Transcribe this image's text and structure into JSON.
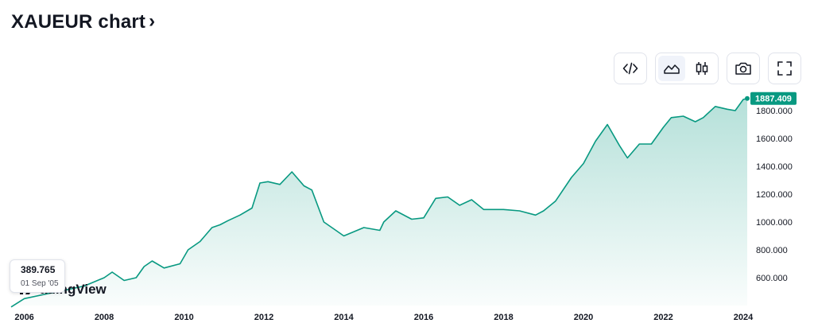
{
  "header": {
    "title": "XAUEUR chart",
    "chevron": "›"
  },
  "toolbar": [
    {
      "name": "embed-code-button",
      "icon": "code-icon"
    },
    {
      "name": "area-chart-style-button",
      "icon": "area-chart-icon",
      "active": true
    },
    {
      "name": "candlestick-style-button",
      "icon": "candlestick-icon"
    },
    {
      "name": "snapshot-button",
      "icon": "camera-icon"
    },
    {
      "name": "fullscreen-button",
      "icon": "fullscreen-icon"
    }
  ],
  "tooltip": {
    "value": "389.765",
    "date": "01 Sep '05"
  },
  "watermark": {
    "text": "TradingView",
    "visible_text": "adingView"
  },
  "colors": {
    "line": "#089981",
    "badge": "#089981",
    "fill_top": "#089981",
    "text": "#131722"
  },
  "chart_data": {
    "type": "area",
    "title": "XAUEUR chart",
    "xlabel": "",
    "ylabel": "",
    "xlim": [
      2005.67,
      2024.1
    ],
    "ylim": [
      400,
      1920
    ],
    "x_ticks": [
      "2006",
      "2008",
      "2010",
      "2012",
      "2014",
      "2016",
      "2018",
      "2020",
      "2022",
      "2024"
    ],
    "y_ticks": [
      "600.000",
      "800.000",
      "1000.000",
      "1200.000",
      "1400.000",
      "1600.000",
      "1800.000"
    ],
    "last_value": "1887.409",
    "grid": false,
    "series": [
      {
        "x": [
          2005.67,
          2006.0,
          2006.5,
          2007.0,
          2007.5,
          2008.0,
          2008.2,
          2008.5,
          2008.8,
          2009.0,
          2009.2,
          2009.5,
          2009.9,
          2010.1,
          2010.4,
          2010.7,
          2010.9,
          2011.1,
          2011.4,
          2011.7,
          2011.9,
          2012.1,
          2012.4,
          2012.7,
          2013.0,
          2013.2,
          2013.5,
          2013.8,
          2014.0,
          2014.5,
          2014.9,
          2015.0,
          2015.3,
          2015.7,
          2016.0,
          2016.3,
          2016.6,
          2016.9,
          2017.2,
          2017.5,
          2017.8,
          2018.0,
          2018.4,
          2018.8,
          2019.0,
          2019.3,
          2019.7,
          2020.0,
          2020.3,
          2020.6,
          2020.9,
          2021.1,
          2021.4,
          2021.7,
          2022.0,
          2022.2,
          2022.5,
          2022.8,
          2023.0,
          2023.3,
          2023.6,
          2023.8,
          2024.0,
          2024.1
        ],
        "y": [
          389.765,
          450,
          480,
          510,
          540,
          600,
          640,
          580,
          600,
          680,
          720,
          670,
          700,
          800,
          860,
          960,
          980,
          1010,
          1050,
          1100,
          1280,
          1290,
          1270,
          1360,
          1260,
          1230,
          1000,
          940,
          900,
          960,
          940,
          1000,
          1080,
          1020,
          1030,
          1170,
          1180,
          1120,
          1160,
          1090,
          1090,
          1090,
          1080,
          1050,
          1080,
          1150,
          1320,
          1420,
          1580,
          1700,
          1550,
          1460,
          1560,
          1560,
          1680,
          1750,
          1760,
          1720,
          1750,
          1830,
          1810,
          1800,
          1880,
          1887.409
        ]
      }
    ]
  }
}
